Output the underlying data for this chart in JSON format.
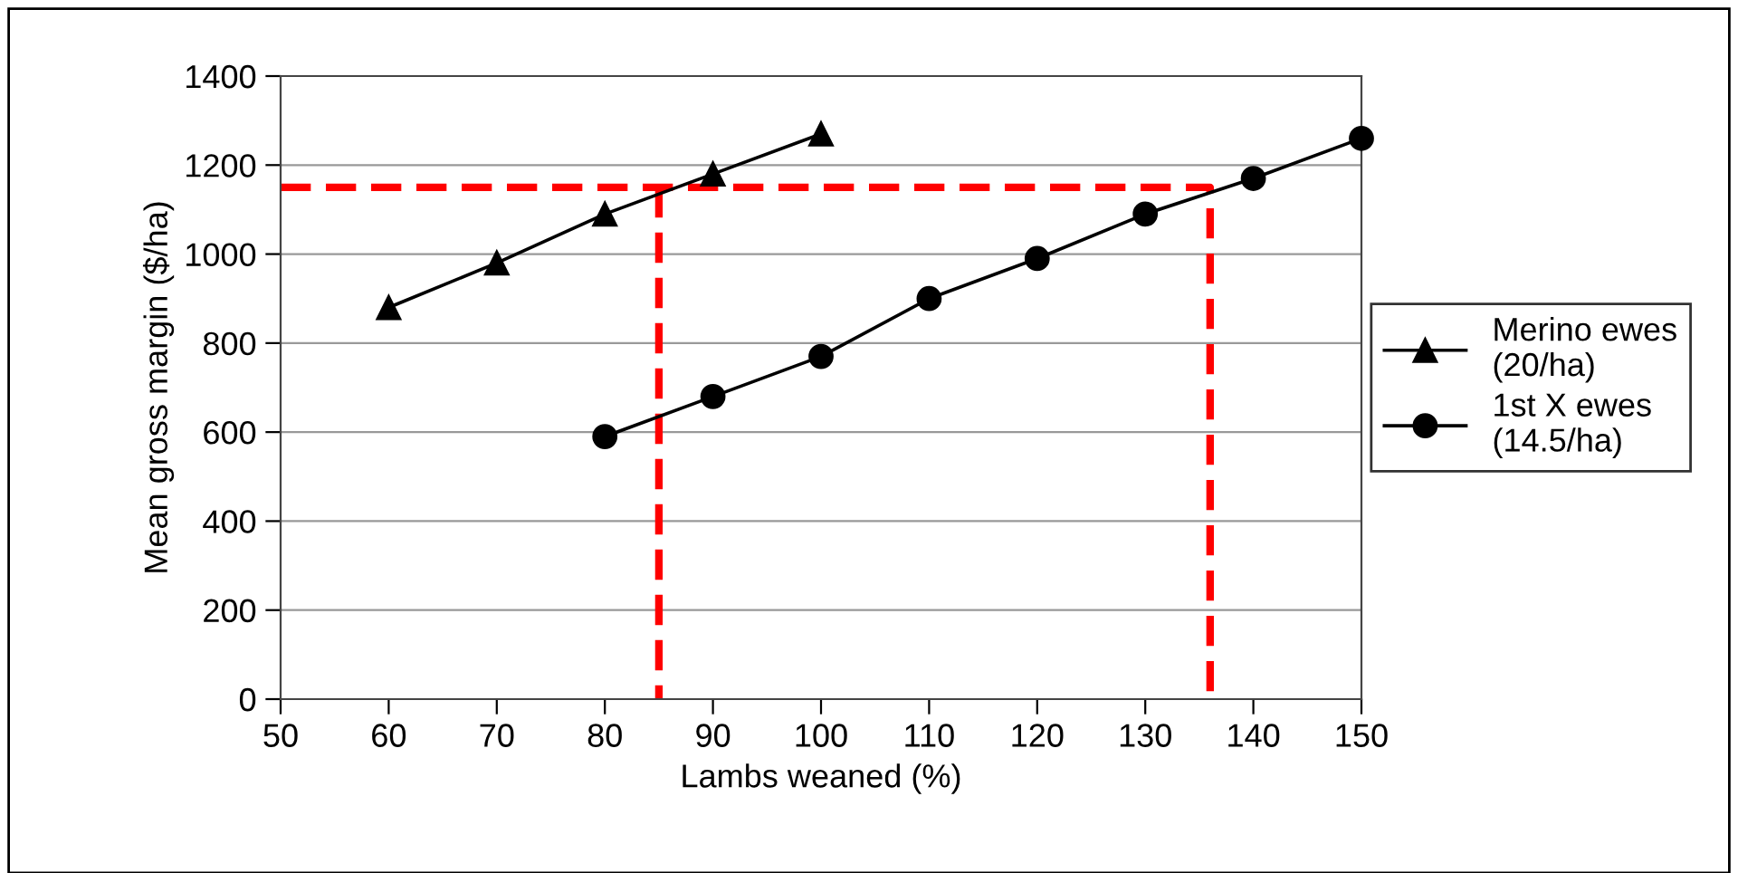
{
  "chart_data": {
    "type": "line",
    "xlabel": "Lambs weaned (%)",
    "ylabel": "Mean gross margin ($/ha)",
    "xlim": [
      50,
      150
    ],
    "xticks": [
      50,
      60,
      70,
      80,
      90,
      100,
      110,
      120,
      130,
      140,
      150
    ],
    "ylim": [
      0,
      1400
    ],
    "yticks": [
      0,
      200,
      400,
      600,
      800,
      1000,
      1200,
      1400
    ],
    "grid": "y",
    "legend": "right",
    "series": [
      {
        "name": "Merino ewes\n(20/ha)",
        "color": "#000000",
        "marker": "triangle",
        "line_style": "solid",
        "x": [
          60,
          70,
          80,
          90,
          100
        ],
        "values": [
          880,
          980,
          1090,
          1180,
          1270
        ]
      },
      {
        "name": "1st X ewes\n(14.5/ha)",
        "color": "#000000",
        "marker": "circle",
        "line_style": "solid",
        "x": [
          80,
          90,
          100,
          110,
          120,
          130,
          140,
          150
        ],
        "values": [
          590,
          680,
          770,
          900,
          990,
          1090,
          1170,
          1260
        ]
      },
      {
        "color": "#ff0000",
        "marker": "none",
        "line_style": "dashed",
        "x": [
          50,
          136,
          136
        ],
        "values": [
          1150,
          1150,
          0
        ]
      },
      {
        "color": "#ff0000",
        "marker": "none",
        "line_style": "dashed",
        "x": [
          85,
          85
        ],
        "values": [
          1150,
          0
        ]
      }
    ]
  }
}
